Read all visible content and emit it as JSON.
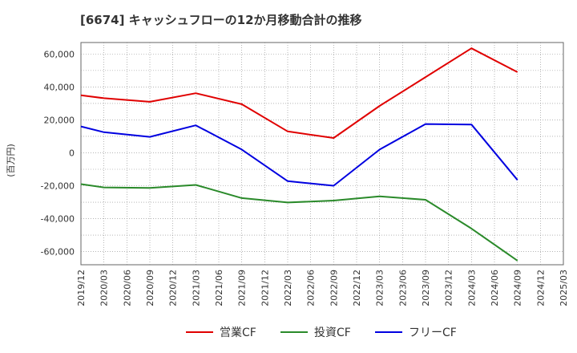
{
  "chart_data": {
    "type": "line",
    "title": "[6674]  キャッシュフローの12か月移動合計の推移",
    "xlabel": "",
    "ylabel": "(百万円)",
    "categories": [
      "2019/12",
      "2020/03",
      "2020/06",
      "2020/09",
      "2020/12",
      "2021/03",
      "2021/06",
      "2021/09",
      "2021/12",
      "2022/03",
      "2022/06",
      "2022/09",
      "2022/12",
      "2023/03",
      "2023/06",
      "2023/09",
      "2023/12",
      "2024/03",
      "2024/06",
      "2024/09",
      "2024/12",
      "2025/03"
    ],
    "ylim": [
      -68000,
      67000
    ],
    "yticks": [
      -60000,
      -40000,
      -20000,
      0,
      20000,
      40000,
      60000
    ],
    "ytick_labels": [
      "-60,000",
      "-40,000",
      "-20,000",
      "0",
      "20,000",
      "40,000",
      "60,000"
    ],
    "grid": true,
    "legend_position": "bottom",
    "series": [
      {
        "name": "営業CF",
        "color": "#e00000",
        "values": [
          35000,
          33200,
          null,
          31000,
          null,
          36200,
          null,
          29500,
          null,
          13000,
          null,
          9000,
          null,
          28500,
          null,
          46000,
          null,
          63500,
          null,
          49000,
          null,
          null
        ]
      },
      {
        "name": "投資CF",
        "color": "#2a8a2a",
        "values": [
          -19000,
          -21000,
          null,
          -21300,
          null,
          -19500,
          null,
          -27500,
          null,
          -30200,
          null,
          -29000,
          null,
          -26500,
          null,
          -28500,
          null,
          -46000,
          null,
          -65500,
          null,
          null
        ]
      },
      {
        "name": "フリーCF",
        "color": "#0000e0",
        "values": [
          16000,
          12500,
          null,
          9700,
          null,
          16700,
          null,
          2000,
          null,
          -17200,
          null,
          -20000,
          null,
          2000,
          null,
          17500,
          null,
          17200,
          null,
          -16500,
          null,
          null
        ]
      }
    ]
  }
}
